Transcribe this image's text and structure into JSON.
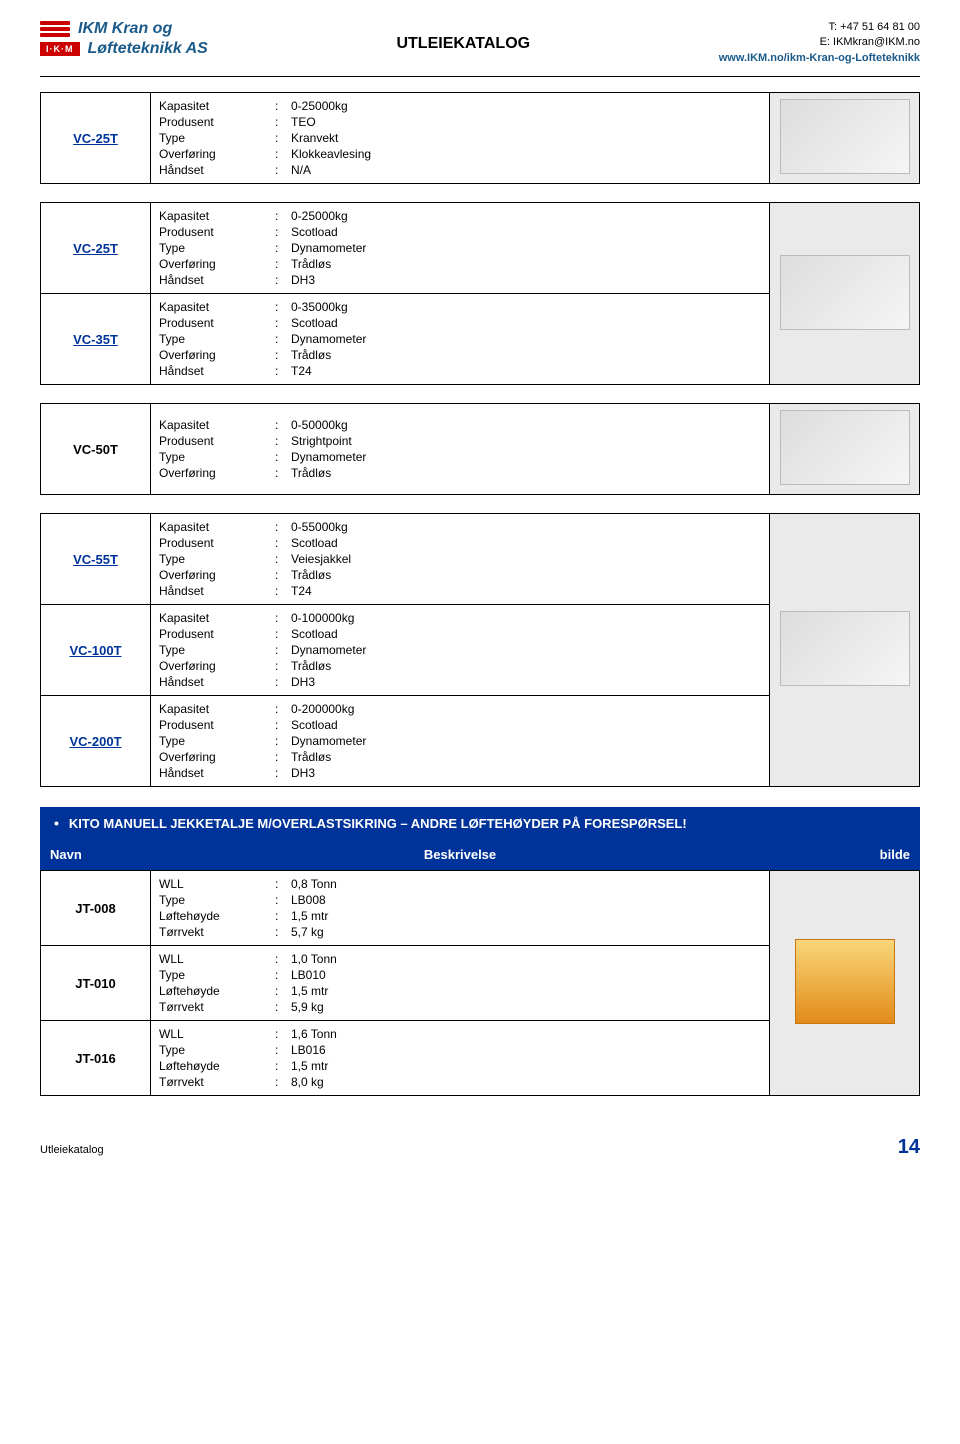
{
  "header": {
    "logo_line1": "IKM Kran og",
    "logo_line2": "Løfteteknikk AS",
    "logo_badge": "I·K·M",
    "title": "UTLEIEKATALOG",
    "phone_label": "T:",
    "phone": "+47 51 64 81 00",
    "email_label": "E:",
    "email": "IKMkran@IKM.no",
    "url": "www.IKM.no/ikm-Kran-og-Lofteteknikk"
  },
  "tables": [
    {
      "rows": [
        {
          "code": "VC-25T",
          "link": true,
          "fields": [
            [
              "Kapasitet",
              "0-25000kg"
            ],
            [
              "Produsent",
              "TEO"
            ],
            [
              "Type",
              "Kranvekt"
            ],
            [
              "Overføring",
              "Klokkeavlesing"
            ],
            [
              "Håndset",
              "N/A"
            ]
          ],
          "image": "gauge"
        }
      ]
    },
    {
      "rows": [
        {
          "code": "VC-25T",
          "link": true,
          "img_rowspan": 2,
          "fields": [
            [
              "Kapasitet",
              "0-25000kg"
            ],
            [
              "Produsent",
              "Scotload"
            ],
            [
              "Type",
              "Dynamometer"
            ],
            [
              "Overføring",
              "Trådløs"
            ],
            [
              "Håndset",
              "DH3"
            ]
          ],
          "image": "dynamo"
        },
        {
          "code": "VC-35T",
          "link": true,
          "skip_img": true,
          "fields": [
            [
              "Kapasitet",
              "0-35000kg"
            ],
            [
              "Produsent",
              "Scotload"
            ],
            [
              "Type",
              "Dynamometer"
            ],
            [
              "Overføring",
              "Trådløs"
            ],
            [
              "Håndset",
              "T24"
            ]
          ]
        }
      ]
    },
    {
      "rows": [
        {
          "code": "VC-50T",
          "link": false,
          "fields": [
            [
              "Kapasitet",
              "0-50000kg"
            ],
            [
              "Produsent",
              "Strightpoint"
            ],
            [
              "Type",
              "Dynamometer"
            ],
            [
              "Overføring",
              "Trådløs"
            ]
          ],
          "image": "loadcell"
        }
      ]
    },
    {
      "rows": [
        {
          "code": "VC-55T",
          "link": true,
          "img_rowspan": 3,
          "fields": [
            [
              "Kapasitet",
              "0-55000kg"
            ],
            [
              "Produsent",
              "Scotload"
            ],
            [
              "Type",
              "Veiesjakkel"
            ],
            [
              "Overføring",
              "Trådløs"
            ],
            [
              "Håndset",
              "T24"
            ]
          ],
          "image": "shackle"
        },
        {
          "code": "VC-100T",
          "link": true,
          "skip_img": true,
          "fields": [
            [
              "Kapasitet",
              "0-100000kg"
            ],
            [
              "Produsent",
              "Scotload"
            ],
            [
              "Type",
              "Dynamometer"
            ],
            [
              "Overføring",
              "Trådløs"
            ],
            [
              "Håndset",
              "DH3"
            ]
          ]
        },
        {
          "code": "VC-200T",
          "link": true,
          "skip_img": true,
          "fields": [
            [
              "Kapasitet",
              "0-200000kg"
            ],
            [
              "Produsent",
              "Scotload"
            ],
            [
              "Type",
              "Dynamometer"
            ],
            [
              "Overføring",
              "Trådløs"
            ],
            [
              "Håndset",
              "DH3"
            ]
          ]
        }
      ]
    }
  ],
  "section": {
    "bullet": "•",
    "title": "KITO MANUELL JEKKETALJE M/OVERLASTSIKRING – ANDRE LØFTEHØYDER PÅ FORESPØRSEL!",
    "col_navn": "Navn",
    "col_besk": "Beskrivelse",
    "col_bilde": "bilde"
  },
  "section_table": {
    "rows": [
      {
        "code": "JT-008",
        "img_rowspan": 3,
        "fields": [
          [
            "WLL",
            "0,8 Tonn"
          ],
          [
            "Type",
            "LB008"
          ],
          [
            "Løftehøyde",
            "1,5 mtr"
          ],
          [
            "Tørrvekt",
            "5,7 kg"
          ]
        ],
        "image": "hoist"
      },
      {
        "code": "JT-010",
        "skip_img": true,
        "fields": [
          [
            "WLL",
            "1,0 Tonn"
          ],
          [
            "Type",
            "LB010"
          ],
          [
            "Løftehøyde",
            "1,5 mtr"
          ],
          [
            "Tørrvekt",
            "5,9 kg"
          ]
        ]
      },
      {
        "code": "JT-016",
        "skip_img": true,
        "fields": [
          [
            "WLL",
            "1,6 Tonn"
          ],
          [
            "Type",
            "LB016"
          ],
          [
            "Løftehøyde",
            "1,5 mtr"
          ],
          [
            "Tørrvekt",
            "8,0 kg"
          ]
        ]
      }
    ]
  },
  "footer": {
    "label": "Utleiekatalog",
    "page": "14"
  },
  "colors": {
    "brand_blue": "#003399",
    "brand_red": "#c00",
    "logo_navy": "#1a5a8a"
  }
}
